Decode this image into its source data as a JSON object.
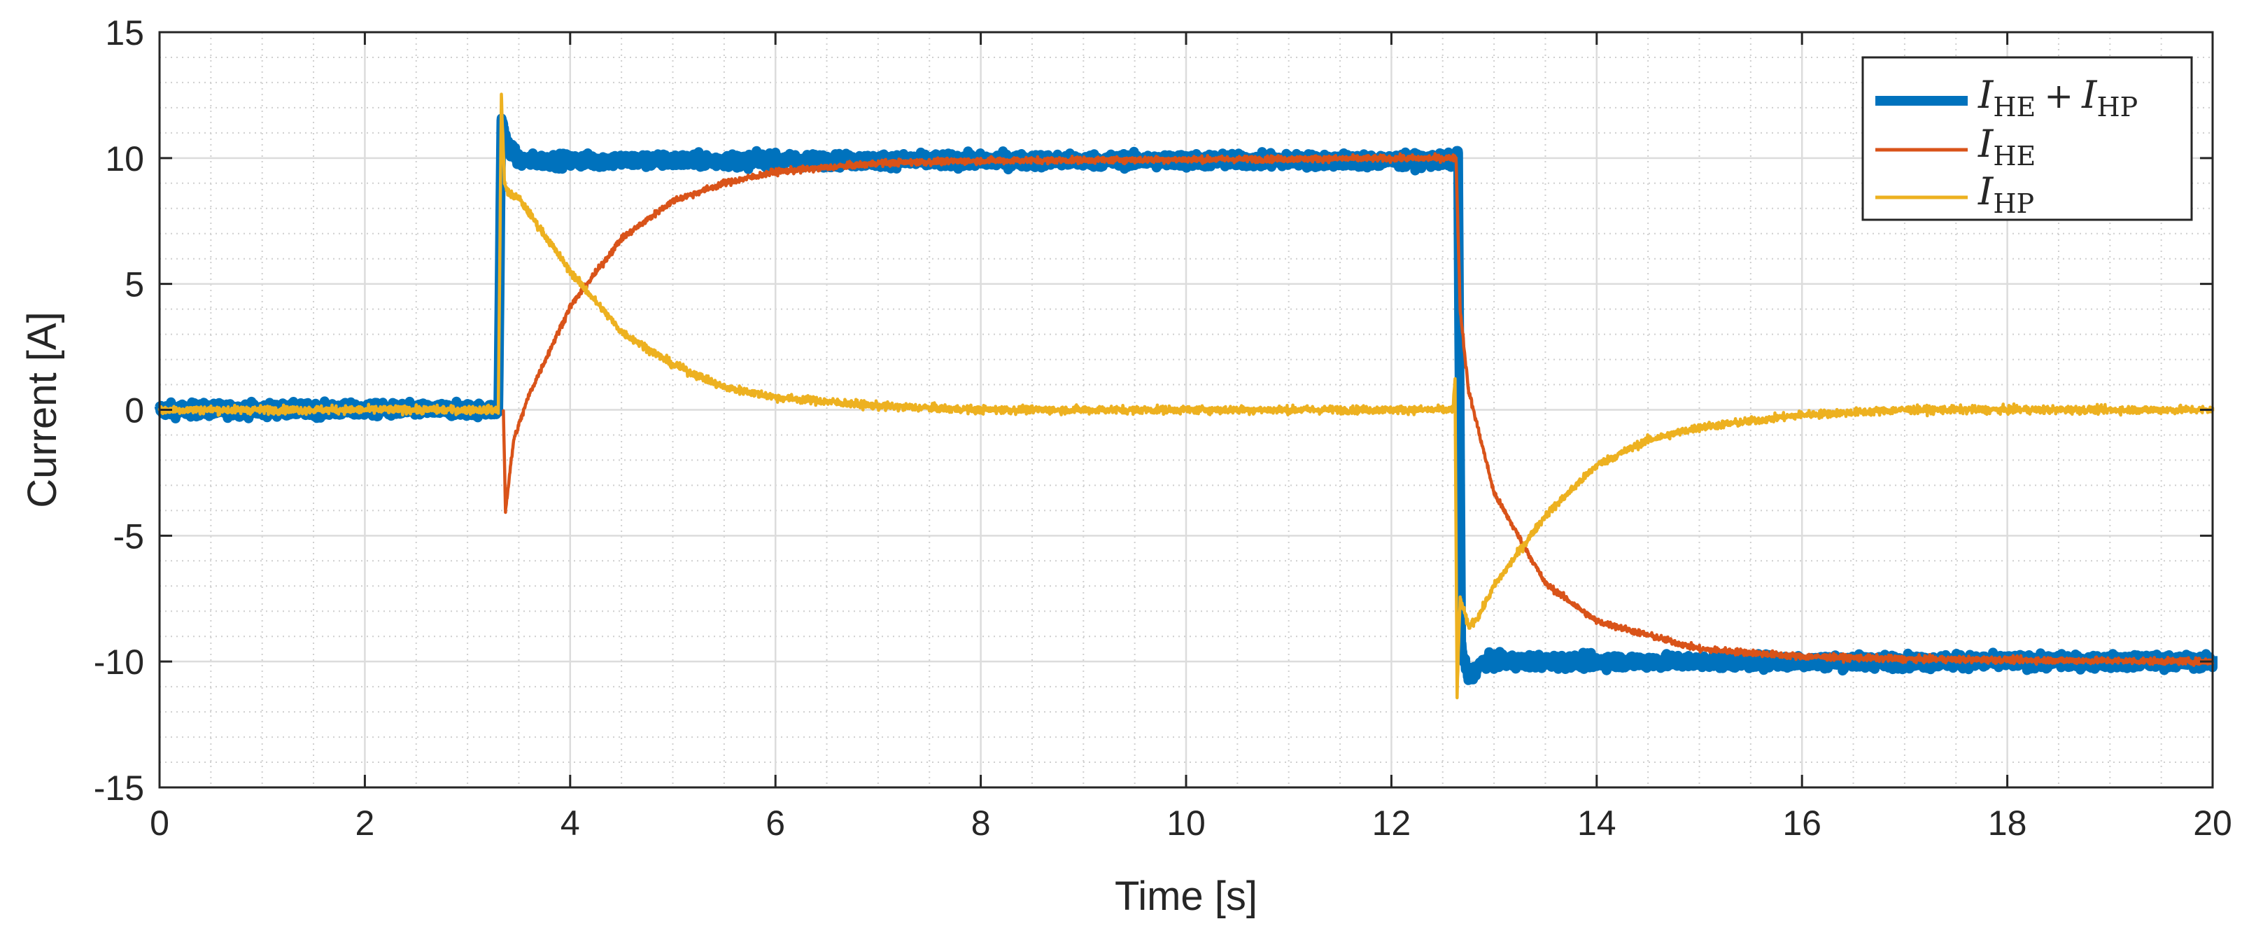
{
  "chart_data": {
    "type": "line",
    "title": "",
    "xlabel": "Time [s]",
    "ylabel": "Current [A]",
    "xlim": [
      0,
      20
    ],
    "ylim": [
      -15,
      15
    ],
    "xticks": [
      0,
      2,
      4,
      6,
      8,
      10,
      12,
      14,
      16,
      18,
      20
    ],
    "yticks": [
      15,
      10,
      5,
      0,
      -5,
      -10,
      -15
    ],
    "xtick_labels": [
      "0",
      "2",
      "4",
      "6",
      "8",
      "10",
      "12",
      "14",
      "16",
      "18",
      "20"
    ],
    "ytick_labels": [
      "15",
      "10",
      "5",
      "0",
      "-5",
      "-10",
      "-15"
    ],
    "grid": true,
    "minor_grid": true,
    "legend_position": "top-right",
    "events": {
      "step_up_time": 3.35,
      "step_down_time": 12.65,
      "level_high": 10,
      "level_low": -10,
      "time_constant": 0.85
    },
    "series": [
      {
        "name": "I_HE + I_HP",
        "legend": {
          "main": "I",
          "sub1": "HE",
          "op": "+",
          "main2": "I",
          "sub2": "HP"
        },
        "color": "#0072BD",
        "noise": 0.25,
        "points": [
          [
            0,
            0
          ],
          [
            3.3,
            0
          ],
          [
            3.33,
            11.6
          ],
          [
            3.38,
            10.6
          ],
          [
            3.5,
            9.9
          ],
          [
            12.6,
            9.9
          ],
          [
            12.65,
            10.2
          ],
          [
            12.68,
            -9.5
          ],
          [
            12.75,
            -10.6
          ],
          [
            12.9,
            -10
          ],
          [
            20,
            -10
          ]
        ]
      },
      {
        "name": "I_HE",
        "legend": {
          "main": "I",
          "sub1": "HE"
        },
        "color": "#D95319",
        "noise": 0.12,
        "points": [
          [
            3.35,
            0
          ],
          [
            3.37,
            -4
          ],
          [
            3.45,
            -1.2
          ],
          [
            3.6,
            0.6
          ],
          [
            4.0,
            4.1
          ],
          [
            4.5,
            6.8
          ],
          [
            5.0,
            8.3
          ],
          [
            5.5,
            9.0
          ],
          [
            6.0,
            9.45
          ],
          [
            7.0,
            9.8
          ],
          [
            8.0,
            9.9
          ],
          [
            12.6,
            10
          ],
          [
            12.63,
            10
          ],
          [
            12.67,
            4.0
          ],
          [
            12.75,
            0.8
          ],
          [
            13.0,
            -3.3
          ],
          [
            13.5,
            -6.9
          ],
          [
            14.0,
            -8.4
          ],
          [
            15.0,
            -9.5
          ],
          [
            16.0,
            -9.8
          ],
          [
            17.0,
            -9.9
          ],
          [
            20,
            -10
          ]
        ]
      },
      {
        "name": "I_HP",
        "legend": {
          "main": "I",
          "sub1": "HP"
        },
        "color": "#EDB120",
        "noise": 0.15,
        "points": [
          [
            0,
            0
          ],
          [
            3.3,
            0
          ],
          [
            3.33,
            12.5
          ],
          [
            3.36,
            9.0
          ],
          [
            3.4,
            8.6
          ],
          [
            3.5,
            8.4
          ],
          [
            4.0,
            5.5
          ],
          [
            4.5,
            3.1
          ],
          [
            5.0,
            1.8
          ],
          [
            5.5,
            0.9
          ],
          [
            6.0,
            0.5
          ],
          [
            7.0,
            0.15
          ],
          [
            8.0,
            0
          ],
          [
            12.6,
            0
          ],
          [
            12.62,
            1.2
          ],
          [
            12.64,
            -11.3
          ],
          [
            12.67,
            -7.5
          ],
          [
            12.75,
            -8.6
          ],
          [
            12.85,
            -8.2
          ],
          [
            13.0,
            -7.0
          ],
          [
            13.5,
            -4.2
          ],
          [
            14.0,
            -2.2
          ],
          [
            14.5,
            -1.2
          ],
          [
            15.0,
            -0.7
          ],
          [
            16.0,
            -0.2
          ],
          [
            17.0,
            0
          ],
          [
            20,
            0
          ]
        ]
      }
    ]
  }
}
